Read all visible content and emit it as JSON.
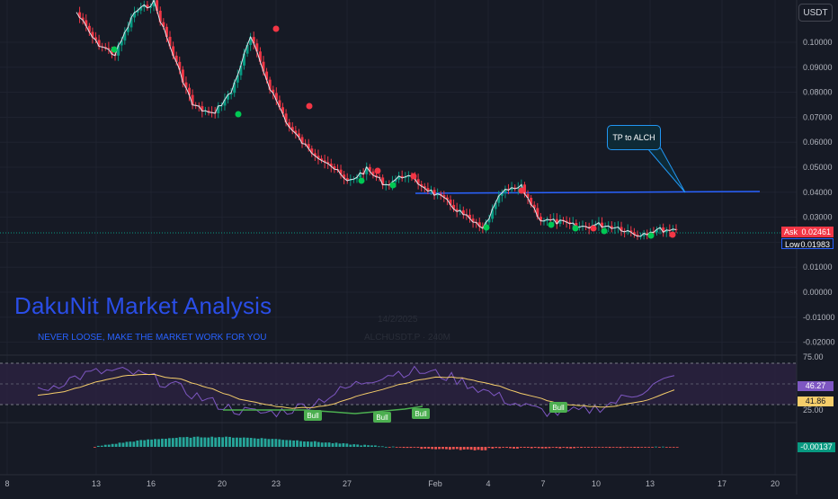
{
  "currency_button": "USDT",
  "price_axis_ticks": [
    "0.10000",
    "0.09000",
    "0.08000",
    "0.07000",
    "0.06000",
    "0.05000",
    "0.04000",
    "0.03000",
    "0.02000",
    "0.01000",
    "0.00000",
    "-0.01000",
    "-0.02000"
  ],
  "price_tags": {
    "ask_label": "Ask",
    "ask_value": "0.02461",
    "low_label": "Low",
    "low_value": "0.01983"
  },
  "time_axis_ticks": [
    "8",
    "13",
    "16",
    "20",
    "23",
    "27",
    "Feb",
    "4",
    "7",
    "10",
    "13",
    "17",
    "20"
  ],
  "watermark": {
    "title": "DakuNit Market Analysis",
    "subtitle": "NEVER LOOSE, MAKE THE MARKET WORK FOR YOU",
    "date": "14/2/2025",
    "symbol": "ALCHUSDT.P · 240M"
  },
  "annotation": {
    "callout_text": "TP to ALCH"
  },
  "oscillator": {
    "axis_ticks": [
      "75.00",
      "25.00"
    ],
    "value_primary": "46.27",
    "value_secondary": "41.86",
    "signal_labels": [
      "Bull",
      "Bull",
      "Bull",
      "Bull"
    ]
  },
  "macd": {
    "value": "-0.00137"
  },
  "colors": {
    "background": "#161a25",
    "up": "#089981",
    "down": "#f23645",
    "line_blue": "#2962ff",
    "osc_fast": "#7e57c2",
    "osc_slow": "#f5cd6a",
    "watermark": "#2a4ee8"
  },
  "chart_data": {
    "type": "line",
    "title": "",
    "price_series": {
      "x": [
        "Jan 10",
        "Jan 12",
        "Jan 13",
        "Jan 15",
        "Jan 17",
        "Jan 19",
        "Jan 20",
        "Jan 21",
        "Jan 22",
        "Jan 23",
        "Jan 24",
        "Jan 25",
        "Jan 26",
        "Jan 27",
        "Jan 28",
        "Jan 29",
        "Jan 30",
        "Jan 31",
        "Feb 1",
        "Feb 2",
        "Feb 3",
        "Feb 4",
        "Feb 5",
        "Feb 6",
        "Feb 7",
        "Feb 8",
        "Feb 9",
        "Feb 10",
        "Feb 11",
        "Feb 12",
        "Feb 13",
        "Feb 14"
      ],
      "y": [
        0.112,
        0.1,
        0.095,
        0.112,
        0.116,
        0.095,
        0.075,
        0.071,
        0.08,
        0.102,
        0.082,
        0.066,
        0.057,
        0.052,
        0.044,
        0.049,
        0.043,
        0.047,
        0.042,
        0.037,
        0.031,
        0.025,
        0.04,
        0.042,
        0.029,
        0.028,
        0.026,
        0.027,
        0.026,
        0.023,
        0.025,
        0.025
      ]
    },
    "tp_level": 0.0405,
    "ylim": [
      -0.022,
      0.11
    ],
    "oscillator_range": [
      0,
      100
    ]
  }
}
